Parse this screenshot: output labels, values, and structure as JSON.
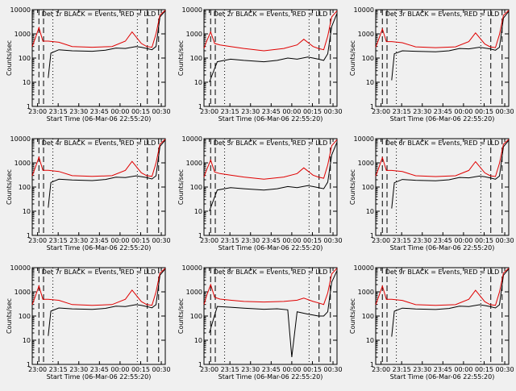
{
  "chart_data": [
    {
      "type": "line",
      "title": "Det 1r BLACK = Events, RED = LLD",
      "xlabel": "Start Time (06-Mar-06 22:55:20)",
      "ylabel": "Counts/sec",
      "yscale": "log",
      "ylim": [
        1,
        10000
      ],
      "xlim": [
        0,
        1.0
      ],
      "xticks": [
        "23:00",
        "23:15",
        "23:30",
        "23:45",
        "00:00",
        "00:15",
        "00:30"
      ],
      "yticks": [
        "1",
        "10",
        "100",
        "1000",
        "10000"
      ],
      "series": [
        {
          "name": "Events",
          "color": "#000000",
          "x": [
            0.12,
            0.14,
            0.2,
            0.3,
            0.45,
            0.55,
            0.63,
            0.7,
            0.78,
            0.82,
            0.86,
            0.9,
            0.93,
            0.96,
            1.0
          ],
          "y": [
            15,
            160,
            220,
            200,
            190,
            210,
            260,
            250,
            300,
            280,
            250,
            220,
            300,
            5000,
            9000
          ]
        },
        {
          "name": "LLD",
          "color": "#e00000",
          "x": [
            0.0,
            0.02,
            0.05,
            0.08,
            0.12,
            0.2,
            0.3,
            0.45,
            0.6,
            0.7,
            0.75,
            0.82,
            0.86,
            0.9,
            0.93,
            0.96,
            1.0
          ],
          "y": [
            300,
            600,
            1800,
            500,
            500,
            450,
            300,
            280,
            300,
            500,
            1200,
            400,
            300,
            280,
            1000,
            6000,
            9500
          ]
        }
      ]
    },
    {
      "type": "line",
      "title": "Det 2r BLACK = Events, RED = LLD",
      "xlabel": "Start Time (06-Mar-06 22:55:20)",
      "ylabel": "Counts/sec",
      "yscale": "log",
      "ylim": [
        1,
        10000
      ],
      "xlim": [
        0,
        1.0
      ],
      "xticks": [
        "23:00",
        "23:15",
        "23:30",
        "23:45",
        "00:00",
        "00:15",
        "00:30"
      ],
      "yticks": [
        "1",
        "10",
        "100",
        "1000",
        "10000"
      ],
      "series": [
        {
          "name": "Events",
          "color": "#000000",
          "x": [
            0.04,
            0.1,
            0.2,
            0.3,
            0.45,
            0.55,
            0.63,
            0.7,
            0.78,
            0.82,
            0.86,
            0.9,
            0.93,
            0.96,
            1.0
          ],
          "y": [
            10,
            70,
            90,
            80,
            70,
            80,
            100,
            90,
            110,
            100,
            90,
            80,
            150,
            2000,
            7000
          ]
        },
        {
          "name": "LLD",
          "color": "#e00000",
          "x": [
            0.0,
            0.02,
            0.05,
            0.08,
            0.12,
            0.2,
            0.3,
            0.45,
            0.6,
            0.7,
            0.75,
            0.82,
            0.86,
            0.9,
            0.93,
            0.96,
            1.0
          ],
          "y": [
            250,
            500,
            1200,
            400,
            350,
            300,
            250,
            200,
            250,
            350,
            600,
            300,
            250,
            220,
            800,
            5000,
            9000
          ]
        }
      ]
    },
    {
      "type": "line",
      "title": "Det 3r BLACK = Events, RED = LLD",
      "xlabel": "Start Time (06-Mar-06 22:55:20)",
      "ylabel": "Counts/sec",
      "yscale": "log",
      "ylim": [
        1,
        10000
      ],
      "xlim": [
        0,
        1.0
      ],
      "xticks": [
        "23:00",
        "23:15",
        "23:30",
        "23:45",
        "00:00",
        "00:15",
        "00:30"
      ],
      "yticks": [
        "1",
        "10",
        "100",
        "1000",
        "10000"
      ],
      "series": [
        {
          "name": "Events",
          "color": "#000000",
          "x": [
            0.12,
            0.14,
            0.2,
            0.3,
            0.45,
            0.55,
            0.63,
            0.7,
            0.78,
            0.82,
            0.86,
            0.9,
            0.93,
            0.96,
            1.0
          ],
          "y": [
            12,
            150,
            200,
            190,
            180,
            200,
            250,
            240,
            280,
            260,
            240,
            210,
            280,
            4500,
            8500
          ]
        },
        {
          "name": "LLD",
          "color": "#e00000",
          "x": [
            0.0,
            0.02,
            0.05,
            0.08,
            0.12,
            0.2,
            0.3,
            0.45,
            0.6,
            0.7,
            0.75,
            0.82,
            0.86,
            0.9,
            0.93,
            0.96,
            1.0
          ],
          "y": [
            280,
            550,
            1600,
            480,
            480,
            430,
            290,
            270,
            290,
            480,
            1100,
            380,
            290,
            270,
            950,
            5800,
            9300
          ]
        }
      ]
    },
    {
      "type": "line",
      "title": "Det 4r BLACK = Events, RED = LLD",
      "xlabel": "Start Time (06-Mar-06 22:55:20)",
      "ylabel": "Counts/sec",
      "yscale": "log",
      "ylim": [
        1,
        10000
      ],
      "xlim": [
        0,
        1.0
      ],
      "xticks": [
        "23:00",
        "23:15",
        "23:30",
        "23:45",
        "00:00",
        "00:15",
        "00:30"
      ],
      "yticks": [
        "1",
        "10",
        "100",
        "1000",
        "10000"
      ],
      "series": [
        {
          "name": "Events",
          "color": "#000000",
          "x": [
            0.12,
            0.14,
            0.2,
            0.3,
            0.45,
            0.55,
            0.63,
            0.7,
            0.78,
            0.82,
            0.86,
            0.9,
            0.93,
            0.96,
            1.0
          ],
          "y": [
            14,
            155,
            210,
            195,
            185,
            205,
            255,
            245,
            290,
            270,
            245,
            215,
            290,
            4800,
            8800
          ]
        },
        {
          "name": "LLD",
          "color": "#e00000",
          "x": [
            0.0,
            0.02,
            0.05,
            0.08,
            0.12,
            0.2,
            0.3,
            0.45,
            0.6,
            0.7,
            0.75,
            0.82,
            0.86,
            0.9,
            0.93,
            0.96,
            1.0
          ],
          "y": [
            290,
            580,
            1700,
            490,
            490,
            440,
            295,
            275,
            295,
            490,
            1150,
            390,
            295,
            275,
            980,
            5900,
            9400
          ]
        }
      ]
    },
    {
      "type": "line",
      "title": "Det 5r BLACK = Events, RED = LLD",
      "xlabel": "Start Time (06-Mar-06 22:55:20)",
      "ylabel": "Counts/sec",
      "yscale": "log",
      "ylim": [
        1,
        10000
      ],
      "xlim": [
        0,
        1.0
      ],
      "xticks": [
        "23:00",
        "23:15",
        "23:30",
        "23:45",
        "00:00",
        "00:15",
        "00:30"
      ],
      "yticks": [
        "1",
        "10",
        "100",
        "1000",
        "10000"
      ],
      "series": [
        {
          "name": "Events",
          "color": "#000000",
          "x": [
            0.04,
            0.1,
            0.2,
            0.3,
            0.45,
            0.55,
            0.63,
            0.7,
            0.78,
            0.82,
            0.86,
            0.9,
            0.93,
            0.96,
            1.0
          ],
          "y": [
            10,
            75,
            95,
            85,
            75,
            85,
            105,
            95,
            115,
            105,
            95,
            85,
            160,
            2100,
            7200
          ]
        },
        {
          "name": "LLD",
          "color": "#e00000",
          "x": [
            0.0,
            0.02,
            0.05,
            0.08,
            0.12,
            0.2,
            0.3,
            0.45,
            0.6,
            0.7,
            0.75,
            0.82,
            0.86,
            0.9,
            0.93,
            0.96,
            1.0
          ],
          "y": [
            260,
            520,
            1300,
            420,
            360,
            310,
            260,
            210,
            260,
            360,
            620,
            310,
            260,
            230,
            820,
            5100,
            9100
          ]
        }
      ]
    },
    {
      "type": "line",
      "title": "Det 6r BLACK = Events, RED = LLD",
      "xlabel": "Start Time (06-Mar-06 22:55:20)",
      "ylabel": "Counts/sec",
      "yscale": "log",
      "ylim": [
        1,
        10000
      ],
      "xlim": [
        0,
        1.0
      ],
      "xticks": [
        "23:00",
        "23:15",
        "23:30",
        "23:45",
        "00:00",
        "00:15",
        "00:30"
      ],
      "yticks": [
        "1",
        "10",
        "100",
        "1000",
        "10000"
      ],
      "series": [
        {
          "name": "Events",
          "color": "#000000",
          "x": [
            0.12,
            0.14,
            0.2,
            0.3,
            0.45,
            0.55,
            0.63,
            0.7,
            0.78,
            0.82,
            0.86,
            0.9,
            0.93,
            0.96,
            1.0
          ],
          "y": [
            13,
            150,
            205,
            190,
            180,
            200,
            250,
            240,
            285,
            265,
            240,
            210,
            285,
            4600,
            8600
          ]
        },
        {
          "name": "LLD",
          "color": "#e00000",
          "x": [
            0.0,
            0.02,
            0.05,
            0.08,
            0.12,
            0.2,
            0.3,
            0.45,
            0.6,
            0.7,
            0.75,
            0.82,
            0.86,
            0.9,
            0.93,
            0.96,
            1.0
          ],
          "y": [
            285,
            560,
            1650,
            485,
            485,
            435,
            292,
            272,
            292,
            485,
            1120,
            385,
            292,
            272,
            960,
            5850,
            9350
          ]
        }
      ]
    },
    {
      "type": "line",
      "title": "Det 7r BLACK = Events, RED = LLD",
      "xlabel": "Start Time (06-Mar-06 22:55:20)",
      "ylabel": "Counts/sec",
      "yscale": "log",
      "ylim": [
        1,
        10000
      ],
      "xlim": [
        0,
        1.0
      ],
      "xticks": [
        "23:00",
        "23:15",
        "23:30",
        "23:45",
        "00:00",
        "00:15",
        "00:30"
      ],
      "yticks": [
        "1",
        "10",
        "100",
        "1000",
        "10000"
      ],
      "series": [
        {
          "name": "Events",
          "color": "#000000",
          "x": [
            0.12,
            0.14,
            0.2,
            0.3,
            0.45,
            0.55,
            0.63,
            0.7,
            0.78,
            0.82,
            0.86,
            0.9,
            0.93,
            0.96,
            1.0
          ],
          "y": [
            15,
            160,
            215,
            198,
            188,
            208,
            258,
            248,
            295,
            275,
            248,
            218,
            295,
            4900,
            8900
          ]
        },
        {
          "name": "LLD",
          "color": "#e00000",
          "x": [
            0.0,
            0.02,
            0.05,
            0.08,
            0.12,
            0.2,
            0.3,
            0.45,
            0.6,
            0.7,
            0.75,
            0.82,
            0.86,
            0.9,
            0.93,
            0.96,
            1.0
          ],
          "y": [
            295,
            590,
            1750,
            495,
            495,
            445,
            298,
            278,
            298,
            495,
            1180,
            395,
            298,
            278,
            990,
            5950,
            9450
          ]
        }
      ]
    },
    {
      "type": "line",
      "title": "Det 8r BLACK = Events, RED = LLD",
      "xlabel": "Start Time (06-Mar-06 22:55:20)",
      "ylabel": "Counts/sec",
      "yscale": "log",
      "ylim": [
        1,
        10000
      ],
      "xlim": [
        0,
        1.0
      ],
      "xticks": [
        "23:00",
        "23:15",
        "23:30",
        "23:45",
        "00:00",
        "00:15",
        "00:30"
      ],
      "yticks": [
        "1",
        "10",
        "100",
        "1000",
        "10000"
      ],
      "series": [
        {
          "name": "Events",
          "color": "#000000",
          "x": [
            0.04,
            0.1,
            0.2,
            0.3,
            0.45,
            0.55,
            0.63,
            0.66,
            0.7,
            0.78,
            0.82,
            0.86,
            0.9,
            0.93,
            0.96,
            1.0
          ],
          "y": [
            20,
            250,
            230,
            210,
            190,
            200,
            180,
            2,
            150,
            120,
            110,
            100,
            100,
            150,
            2500,
            7500
          ]
        },
        {
          "name": "LLD",
          "color": "#e00000",
          "x": [
            0.0,
            0.02,
            0.05,
            0.08,
            0.12,
            0.2,
            0.3,
            0.45,
            0.6,
            0.7,
            0.75,
            0.82,
            0.86,
            0.9,
            0.93,
            0.96,
            1.0
          ],
          "y": [
            300,
            700,
            2000,
            600,
            500,
            450,
            400,
            380,
            400,
            450,
            550,
            400,
            350,
            300,
            900,
            5500,
            9500
          ]
        }
      ]
    },
    {
      "type": "line",
      "title": "Det 9r BLACK = Events, RED = LLD",
      "xlabel": "Start Time (06-Mar-06 22:55:20)",
      "ylabel": "Counts/sec",
      "yscale": "log",
      "ylim": [
        1,
        10000
      ],
      "xlim": [
        0,
        1.0
      ],
      "xticks": [
        "23:00",
        "23:15",
        "23:30",
        "23:45",
        "00:00",
        "00:15",
        "00:30"
      ],
      "yticks": [
        "1",
        "10",
        "100",
        "1000",
        "10000"
      ],
      "series": [
        {
          "name": "Events",
          "color": "#000000",
          "x": [
            0.12,
            0.14,
            0.2,
            0.3,
            0.45,
            0.55,
            0.63,
            0.7,
            0.78,
            0.82,
            0.86,
            0.9,
            0.93,
            0.96,
            1.0
          ],
          "y": [
            14,
            158,
            212,
            196,
            186,
            206,
            256,
            246,
            292,
            272,
            246,
            216,
            292,
            4850,
            8850
          ]
        },
        {
          "name": "LLD",
          "color": "#e00000",
          "x": [
            0.0,
            0.02,
            0.05,
            0.08,
            0.12,
            0.2,
            0.3,
            0.45,
            0.6,
            0.7,
            0.75,
            0.82,
            0.86,
            0.9,
            0.93,
            0.96,
            1.0
          ],
          "y": [
            292,
            585,
            1720,
            492,
            492,
            442,
            296,
            276,
            296,
            492,
            1160,
            392,
            296,
            276,
            985,
            5920,
            9420
          ]
        }
      ]
    }
  ]
}
